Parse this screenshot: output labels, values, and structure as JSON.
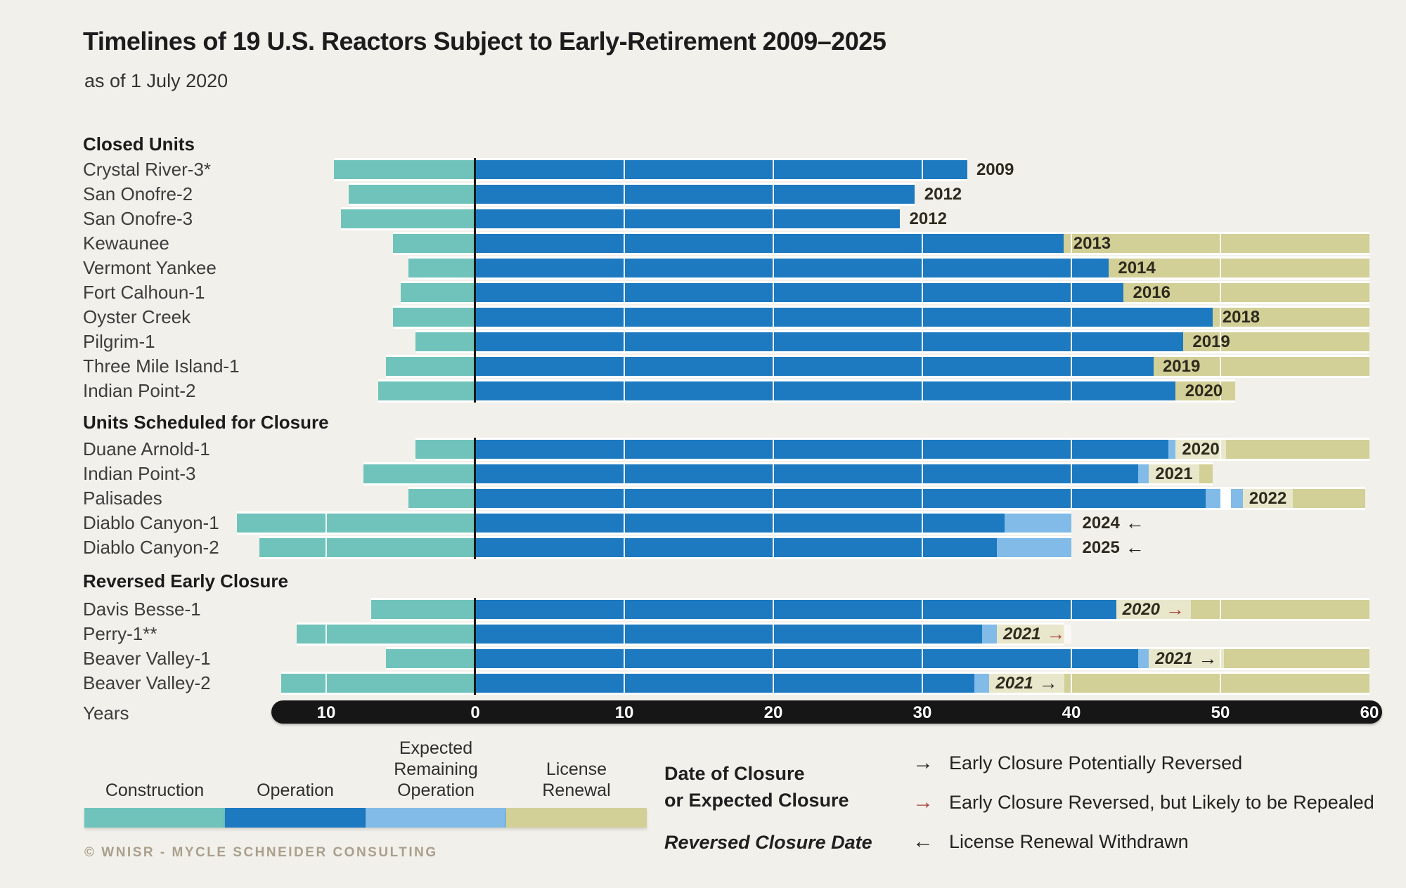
{
  "title": "Timelines of 19 U.S. Reactors Subject to Early-Retirement 2009–2025",
  "subtitle": "as of 1 July 2020",
  "axis": {
    "label": "Years",
    "ticks": [
      {
        "value": -10,
        "text": "10"
      },
      {
        "value": 0,
        "text": "0"
      },
      {
        "value": 10,
        "text": "10"
      },
      {
        "value": 20,
        "text": "20"
      },
      {
        "value": 30,
        "text": "30"
      },
      {
        "value": 40,
        "text": "40"
      },
      {
        "value": 50,
        "text": "50"
      },
      {
        "value": 60,
        "text": "60"
      }
    ],
    "range_years": [
      -13.7,
      60.9
    ]
  },
  "colors": {
    "background": "#f2f0ea",
    "construction": "#6fc3ba",
    "operation": "#1e7ac0",
    "remaining": "#82bbe7",
    "license": "#d2cf97",
    "axis_bar": "#161616",
    "black_arrow": "#222222",
    "red_arrow": "#a8403a",
    "copyright": "#a99f8c"
  },
  "chart_data": {
    "type": "gantt-bar",
    "x_unit": "years of plant lifetime (0 = start of operation; negative = construction)",
    "grid_ticks": [
      -10,
      10,
      20,
      30,
      40,
      50
    ],
    "sections": [
      {
        "heading": "Closed Units",
        "rows": [
          {
            "label": "Crystal River-3*",
            "segments": [
              {
                "type": "construction",
                "from": -9.5,
                "to": 0
              },
              {
                "type": "operation",
                "from": 0,
                "to": 33
              }
            ],
            "closure": {
              "text": "2009",
              "at": 33.3,
              "boxed": false,
              "italic": false,
              "arrow": null
            }
          },
          {
            "label": "San Onofre-2",
            "segments": [
              {
                "type": "construction",
                "from": -8.5,
                "to": 0
              },
              {
                "type": "operation",
                "from": 0,
                "to": 29.5
              }
            ],
            "closure": {
              "text": "2012",
              "at": 29.8,
              "boxed": false,
              "italic": false,
              "arrow": null
            }
          },
          {
            "label": "San Onofre-3",
            "segments": [
              {
                "type": "construction",
                "from": -9,
                "to": 0
              },
              {
                "type": "operation",
                "from": 0,
                "to": 28.5
              }
            ],
            "closure": {
              "text": "2012",
              "at": 28.8,
              "boxed": false,
              "italic": false,
              "arrow": null
            }
          },
          {
            "label": "Kewaunee",
            "segments": [
              {
                "type": "construction",
                "from": -5.5,
                "to": 0
              },
              {
                "type": "operation",
                "from": 0,
                "to": 39.5
              },
              {
                "type": "license",
                "from": 39.5,
                "to": 60
              }
            ],
            "closure": {
              "text": "2013",
              "at": 39.8,
              "boxed": false,
              "italic": false,
              "arrow": null
            }
          },
          {
            "label": "Vermont Yankee",
            "segments": [
              {
                "type": "construction",
                "from": -4.5,
                "to": 0
              },
              {
                "type": "operation",
                "from": 0,
                "to": 42.5
              },
              {
                "type": "license",
                "from": 42.5,
                "to": 60
              }
            ],
            "closure": {
              "text": "2014",
              "at": 42.8,
              "boxed": false,
              "italic": false,
              "arrow": null
            }
          },
          {
            "label": "Fort Calhoun-1",
            "segments": [
              {
                "type": "construction",
                "from": -5,
                "to": 0
              },
              {
                "type": "operation",
                "from": 0,
                "to": 43.5
              },
              {
                "type": "license",
                "from": 43.5,
                "to": 60
              }
            ],
            "closure": {
              "text": "2016",
              "at": 43.8,
              "boxed": false,
              "italic": false,
              "arrow": null
            }
          },
          {
            "label": "Oyster Creek",
            "segments": [
              {
                "type": "construction",
                "from": -5.5,
                "to": 0
              },
              {
                "type": "operation",
                "from": 0,
                "to": 49.5
              },
              {
                "type": "license",
                "from": 49.5,
                "to": 60
              }
            ],
            "closure": {
              "text": "2018",
              "at": 49.8,
              "boxed": false,
              "italic": false,
              "arrow": null
            }
          },
          {
            "label": "Pilgrim-1",
            "segments": [
              {
                "type": "construction",
                "from": -4,
                "to": 0
              },
              {
                "type": "operation",
                "from": 0,
                "to": 47.5
              },
              {
                "type": "license",
                "from": 47.5,
                "to": 60
              }
            ],
            "closure": {
              "text": "2019",
              "at": 47.8,
              "boxed": false,
              "italic": false,
              "arrow": null
            }
          },
          {
            "label": "Three Mile Island-1",
            "segments": [
              {
                "type": "construction",
                "from": -6,
                "to": 0
              },
              {
                "type": "operation",
                "from": 0,
                "to": 45.5
              },
              {
                "type": "license",
                "from": 45.5,
                "to": 60
              }
            ],
            "closure": {
              "text": "2019",
              "at": 45.8,
              "boxed": false,
              "italic": false,
              "arrow": null
            }
          },
          {
            "label": "Indian Point-2",
            "segments": [
              {
                "type": "construction",
                "from": -6.5,
                "to": 0
              },
              {
                "type": "operation",
                "from": 0,
                "to": 47
              },
              {
                "type": "license",
                "from": 47,
                "to": 51
              }
            ],
            "closure": {
              "text": "2020",
              "at": 47.3,
              "boxed": false,
              "italic": false,
              "arrow": null
            }
          }
        ]
      },
      {
        "heading": "Units Scheduled for Closure",
        "rows": [
          {
            "label": "Duane Arnold-1",
            "segments": [
              {
                "type": "construction",
                "from": -4,
                "to": 0
              },
              {
                "type": "operation",
                "from": 0,
                "to": 46.5
              },
              {
                "type": "remaining",
                "from": 46.5,
                "to": 47
              },
              {
                "type": "license",
                "from": 47,
                "to": 60
              }
            ],
            "closure": {
              "text": "2020",
              "at": 47,
              "boxed": true,
              "italic": false,
              "arrow": null
            }
          },
          {
            "label": "Indian Point-3",
            "segments": [
              {
                "type": "construction",
                "from": -7.5,
                "to": 0
              },
              {
                "type": "operation",
                "from": 0,
                "to": 44.5
              },
              {
                "type": "remaining",
                "from": 44.5,
                "to": 45.2
              },
              {
                "type": "license",
                "from": 45.2,
                "to": 49.5
              }
            ],
            "closure": {
              "text": "2021",
              "at": 45.2,
              "boxed": true,
              "italic": false,
              "arrow": null
            }
          },
          {
            "label": "Palisades",
            "segments": [
              {
                "type": "construction",
                "from": -4.5,
                "to": 0
              },
              {
                "type": "operation",
                "from": 0,
                "to": 49
              },
              {
                "type": "remaining",
                "from": 49,
                "to": 50
              },
              {
                "type": "remaining",
                "from": 50.7,
                "to": 51.5
              },
              {
                "type": "license",
                "from": 51.5,
                "to": 59.7
              }
            ],
            "closure": {
              "text": "2022",
              "at": 51.5,
              "boxed": true,
              "italic": false,
              "arrow": null
            }
          },
          {
            "label": "Diablo Canyon-1",
            "segments": [
              {
                "type": "construction",
                "from": -16,
                "to": 0
              },
              {
                "type": "operation",
                "from": 0,
                "to": 35.5
              },
              {
                "type": "remaining",
                "from": 35.5,
                "to": 40
              }
            ],
            "closure": {
              "text": "2024",
              "at": 40.4,
              "boxed": false,
              "italic": false,
              "arrow": "left-black"
            }
          },
          {
            "label": "Diablo Canyon-2",
            "segments": [
              {
                "type": "construction",
                "from": -14.5,
                "to": 0
              },
              {
                "type": "operation",
                "from": 0,
                "to": 35
              },
              {
                "type": "remaining",
                "from": 35,
                "to": 40
              }
            ],
            "closure": {
              "text": "2025",
              "at": 40.4,
              "boxed": false,
              "italic": false,
              "arrow": "left-black"
            }
          }
        ]
      },
      {
        "heading": "Reversed Early Closure",
        "rows": [
          {
            "label": "Davis Besse-1",
            "segments": [
              {
                "type": "construction",
                "from": -7,
                "to": 0
              },
              {
                "type": "operation",
                "from": 0,
                "to": 43
              },
              {
                "type": "license",
                "from": 43,
                "to": 60
              }
            ],
            "closure": {
              "text": "2020",
              "at": 43,
              "boxed": true,
              "italic": true,
              "arrow": "right-red"
            }
          },
          {
            "label": "Perry-1**",
            "segments": [
              {
                "type": "construction",
                "from": -12,
                "to": 0
              },
              {
                "type": "operation",
                "from": 0,
                "to": 34
              },
              {
                "type": "remaining",
                "from": 34,
                "to": 35
              },
              {
                "type": "license",
                "from": 35,
                "to": 39.5
              }
            ],
            "closure": {
              "text": "2021",
              "at": 35,
              "boxed": true,
              "italic": true,
              "arrow": "right-red"
            }
          },
          {
            "label": "Beaver Valley-1",
            "segments": [
              {
                "type": "construction",
                "from": -6,
                "to": 0
              },
              {
                "type": "operation",
                "from": 0,
                "to": 44.5
              },
              {
                "type": "remaining",
                "from": 44.5,
                "to": 45.2
              },
              {
                "type": "license",
                "from": 45.2,
                "to": 60
              }
            ],
            "closure": {
              "text": "2021",
              "at": 45.2,
              "boxed": true,
              "italic": true,
              "arrow": "right-black"
            }
          },
          {
            "label": "Beaver Valley-2",
            "segments": [
              {
                "type": "construction",
                "from": -13,
                "to": 0
              },
              {
                "type": "operation",
                "from": 0,
                "to": 33.5
              },
              {
                "type": "remaining",
                "from": 33.5,
                "to": 34.5
              },
              {
                "type": "license",
                "from": 34.5,
                "to": 60
              }
            ],
            "closure": {
              "text": "2021",
              "at": 34.5,
              "boxed": true,
              "italic": true,
              "arrow": "right-black"
            }
          }
        ]
      }
    ]
  },
  "legend": {
    "items": [
      {
        "label": "Construction",
        "color_key": "construction"
      },
      {
        "label": "Operation",
        "color_key": "operation"
      },
      {
        "label": "Expected\nRemaining\nOperation",
        "color_key": "remaining"
      },
      {
        "label": "License\nRenewal",
        "color_key": "license"
      }
    ],
    "closure_note_line1": "Date of Closure",
    "closure_note_line2": "or Expected Closure",
    "closure_note_line3": "Reversed Closure Date",
    "arrow_items": [
      {
        "glyph": "→",
        "color_key": "black_arrow",
        "text": "Early Closure Potentially Reversed"
      },
      {
        "glyph": "→",
        "color_key": "red_arrow",
        "text": "Early Closure Reversed, but Likely to be Repealed"
      },
      {
        "glyph": "←",
        "color_key": "black_arrow",
        "text": "License Renewal Withdrawn"
      }
    ]
  },
  "copyright": "© WNISR - Mycle Schneider Consulting"
}
